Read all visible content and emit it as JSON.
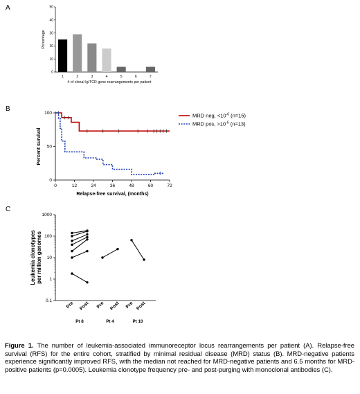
{
  "chart_data": [
    {
      "panel": "A",
      "type": "bar",
      "categories": [
        "1",
        "2",
        "3",
        "4",
        "5",
        "6",
        "7"
      ],
      "values": [
        25,
        29,
        22,
        18,
        4,
        0,
        4
      ],
      "bar_colors": [
        "#000000",
        "#999999",
        "#8a8a8a",
        "#cccccc",
        "#666666",
        "#666666",
        "#666666"
      ],
      "ylabel": "Percentage",
      "xlabel": "# of clonal Ig/TCR gene rearrangements per patient",
      "ylim": [
        0,
        50
      ],
      "yticks": [
        "0",
        "10",
        "20",
        "30",
        "40",
        "50"
      ]
    },
    {
      "panel": "B",
      "type": "line",
      "ylabel": "Percent survival",
      "xlabel": "Relapse-free survival, (months)",
      "xlim": [
        0,
        72
      ],
      "ylim": [
        0,
        100
      ],
      "xticks": [
        "0",
        "12",
        "24",
        "36",
        "48",
        "60",
        "72"
      ],
      "yticks": [
        "0",
        "50",
        "100"
      ],
      "series": [
        {
          "name": "MRD neg, <10",
          "sup": "-6",
          "n": " (n=15)",
          "color": "#c00000",
          "style": "solid",
          "x": [
            0,
            4,
            4,
            10,
            10,
            15,
            15,
            72
          ],
          "y": [
            100,
            100,
            93,
            93,
            86,
            86,
            73,
            73
          ],
          "censor_x": [
            2,
            6,
            8,
            20,
            30,
            40,
            52,
            58,
            62,
            64,
            66,
            68,
            70
          ]
        },
        {
          "name": "MRD pos, >10",
          "sup": "-6",
          "n": " (n=13)",
          "color": "#1f3bb3",
          "style": "dashed",
          "x": [
            0,
            2,
            2,
            3,
            3,
            4,
            4,
            6,
            6,
            18,
            18,
            26,
            26,
            30,
            30,
            36,
            36,
            48,
            48,
            62,
            62,
            68
          ],
          "y": [
            100,
            100,
            92,
            92,
            77,
            77,
            58,
            58,
            42,
            42,
            33,
            33,
            31,
            31,
            23,
            23,
            16,
            16,
            8,
            8,
            10,
            10
          ],
          "censor_x": [
            66
          ]
        }
      ]
    },
    {
      "panel": "C",
      "type": "line",
      "scale": "log",
      "ylabel_lines": [
        "Leukemia clonotypes",
        "per million genomes"
      ],
      "ylim": [
        0.1,
        1000
      ],
      "yticks": [
        "0.1",
        "1",
        "10",
        "100",
        "1000"
      ],
      "categories": [
        "Pre",
        "Post",
        "Pre",
        "Post",
        "Pre",
        "Post"
      ],
      "groups": [
        {
          "label": "Pt 8",
          "lines": [
            [
              140,
              180
            ],
            [
              100,
              170
            ],
            [
              60,
              120
            ],
            [
              40,
              90
            ],
            [
              20,
              70
            ],
            [
              10,
              20
            ],
            [
              1.8,
              0.7
            ]
          ]
        },
        {
          "label": "Pt 4",
          "lines": [
            [
              10,
              25
            ]
          ]
        },
        {
          "label": "Pt 10",
          "lines": [
            [
              65,
              8
            ]
          ]
        }
      ]
    }
  ],
  "panels": {
    "a": "A",
    "b": "B",
    "c": "C"
  },
  "caption": {
    "lead": "Figure 1.",
    "text": " The number of leukemia-associated immunoreceptor locus rearrangements per patient (A). Relapse-free survival (RFS) for the entire cohort, stratified by minimal residual disease (MRD) status (B). MRD-negative patients experience significantly improved RFS, with the median not reached for MRD-negative patients and 6.5 months for MRD-positive patients (p=0.0005). Leukemia clonotype frequency pre- and post-purging with monoclonal antibodies (C)."
  }
}
